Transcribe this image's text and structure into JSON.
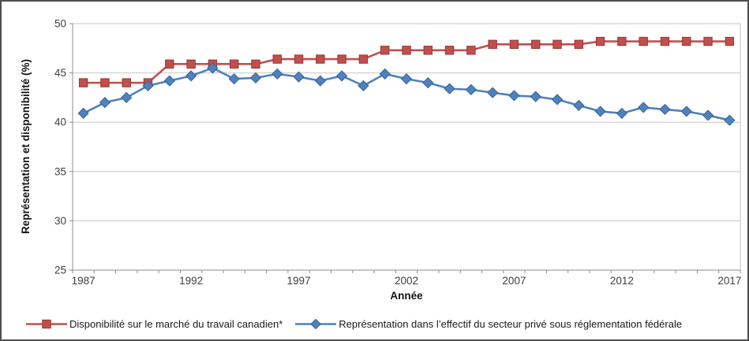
{
  "chart_data": {
    "type": "line",
    "title": "",
    "xlabel": "Année",
    "ylabel": "Représentation et disponibilité (%)",
    "ylim": [
      25,
      50
    ],
    "yticks": [
      25,
      30,
      35,
      40,
      45,
      50
    ],
    "xtick_labels": [
      "1987",
      "1992",
      "1997",
      "2002",
      "2007",
      "2012",
      "2017"
    ],
    "x": [
      1987,
      1988,
      1989,
      1990,
      1991,
      1992,
      1993,
      1994,
      1995,
      1996,
      1997,
      1998,
      1999,
      2000,
      2001,
      2002,
      2003,
      2004,
      2005,
      2006,
      2007,
      2008,
      2009,
      2010,
      2011,
      2012,
      2013,
      2014,
      2015,
      2016,
      2017
    ],
    "grid": true,
    "legend_position": "bottom",
    "series": [
      {
        "name": "Disponibilité sur le marché du travail canadien*",
        "marker": "square",
        "color": "#C0504D",
        "marker_border": "#943634",
        "values": [
          44.0,
          44.0,
          44.0,
          44.0,
          45.9,
          45.9,
          45.9,
          45.9,
          45.9,
          46.4,
          46.4,
          46.4,
          46.4,
          46.4,
          47.3,
          47.3,
          47.3,
          47.3,
          47.3,
          47.9,
          47.9,
          47.9,
          47.9,
          47.9,
          48.2,
          48.2,
          48.2,
          48.2,
          48.2,
          48.2,
          48.2
        ]
      },
      {
        "name": "Représentation dans l’effectif du secteur privé sous réglementation fédérale",
        "marker": "diamond",
        "color": "#4F81BD",
        "marker_border": "#38619C",
        "values": [
          40.9,
          42.0,
          42.5,
          43.7,
          44.2,
          44.7,
          45.5,
          44.4,
          44.5,
          44.9,
          44.6,
          44.2,
          44.7,
          43.7,
          44.9,
          44.4,
          44.0,
          43.4,
          43.3,
          43.0,
          42.7,
          42.6,
          42.3,
          41.7,
          41.1,
          40.9,
          41.5,
          41.3,
          41.1,
          40.7,
          40.2
        ]
      }
    ],
    "axis_color": "#8C8C8C",
    "grid_color": "#C6C6C6"
  }
}
